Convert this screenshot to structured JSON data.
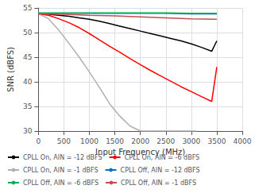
{
  "chart_data": {
    "type": "line",
    "xlabel": "Input Frequency (MHz)",
    "ylabel": "SNR (dBFS)",
    "xlim": [
      0,
      4000
    ],
    "ylim": [
      30,
      55
    ],
    "xticks": [
      0,
      500,
      1000,
      1500,
      2000,
      2500,
      3000,
      3500,
      4000
    ],
    "yticks": [
      30,
      35,
      40,
      45,
      50,
      55
    ],
    "grid": true,
    "legend": "lower left",
    "series": [
      {
        "name": "CPLL On, AIN = -12 dBFS",
        "color": "#000000",
        "x": [
          0,
          200,
          400,
          600,
          800,
          1000,
          1200,
          1400,
          1600,
          1800,
          2000,
          2200,
          2400,
          2600,
          2800,
          3000,
          3200,
          3400,
          3500
        ],
        "values": [
          53.8,
          53.7,
          53.5,
          53.3,
          53.0,
          52.7,
          52.3,
          51.8,
          51.3,
          50.8,
          50.3,
          49.8,
          49.3,
          48.8,
          48.3,
          47.7,
          47.0,
          46.2,
          48.3
        ]
      },
      {
        "name": "CPLL On, AIN = -6 dBFS",
        "color": "#ff0000",
        "x": [
          0,
          200,
          400,
          600,
          800,
          1000,
          1200,
          1400,
          1600,
          1800,
          2000,
          2200,
          2400,
          2600,
          2800,
          3000,
          3200,
          3400,
          3500
        ],
        "values": [
          53.8,
          53.5,
          52.8,
          52.0,
          51.0,
          49.8,
          48.5,
          47.2,
          46.0,
          44.7,
          43.5,
          42.3,
          41.2,
          40.1,
          39.0,
          38.0,
          37.0,
          36.0,
          43.0
        ]
      },
      {
        "name": "CPLL On, AIN = -1 dBFS",
        "color": "#b0b0b0",
        "x": [
          0,
          200,
          400,
          600,
          800,
          1000,
          1200,
          1400,
          1600,
          1800,
          2000,
          2200,
          2400,
          2600,
          2800,
          3000,
          3100
        ],
        "values": [
          53.8,
          52.8,
          50.5,
          47.8,
          45.0,
          42.0,
          38.8,
          35.5,
          33.0,
          31.0,
          30.0,
          30.0,
          30.0,
          30.0,
          30.0,
          30.0,
          30.0
        ]
      },
      {
        "name": "CPLL Off, AIN = -12 dBFS",
        "color": "#0070c0",
        "x": [
          0,
          500,
          1000,
          1500,
          2000,
          2500,
          3000,
          3500
        ],
        "values": [
          53.9,
          53.9,
          53.9,
          53.9,
          53.9,
          53.9,
          53.8,
          53.8
        ]
      },
      {
        "name": "CPLL Off, AIN = -6 dBFS",
        "color": "#00b050",
        "x": [
          0,
          500,
          1000,
          1500,
          2000,
          2500,
          3000,
          3500
        ],
        "values": [
          54.0,
          54.0,
          54.0,
          54.0,
          54.0,
          54.0,
          53.9,
          53.9
        ]
      },
      {
        "name": "CPLL Off, AIN = -1 dBFS",
        "color": "#c0504d",
        "x": [
          0,
          500,
          1000,
          1500,
          2000,
          2500,
          3000,
          3500
        ],
        "values": [
          53.8,
          53.7,
          53.5,
          53.4,
          53.2,
          53.0,
          52.8,
          52.7
        ]
      }
    ]
  }
}
